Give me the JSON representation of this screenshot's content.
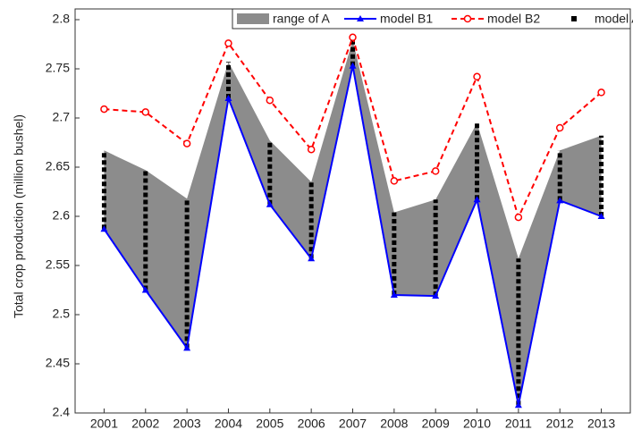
{
  "chart_data": {
    "type": "line",
    "y_label": "Total crop production (million bushel)",
    "x": [
      2001,
      2002,
      2003,
      2004,
      2005,
      2006,
      2007,
      2008,
      2009,
      2010,
      2011,
      2012,
      2013
    ],
    "xlim": [
      2000.3,
      2013.7
    ],
    "xticks": [
      2001,
      2002,
      2003,
      2004,
      2005,
      2006,
      2007,
      2008,
      2009,
      2010,
      2011,
      2012,
      2013
    ],
    "ylim": [
      2.4,
      2.8
    ],
    "yticks": [
      2.4,
      2.45,
      2.5,
      2.55,
      2.6,
      2.65,
      2.7,
      2.75,
      2.8
    ],
    "legend": "top-right",
    "series": [
      {
        "name": "range of A",
        "color": "#8c8c8c"
      },
      {
        "name": "model B1",
        "color": "#0000ff",
        "values": [
          2.587,
          2.525,
          2.466,
          2.72,
          2.612,
          2.557,
          2.753,
          2.52,
          2.519,
          2.617,
          2.408,
          2.616,
          2.6
        ]
      },
      {
        "name": "model B2",
        "color": "#ff0000",
        "values": [
          2.709,
          2.706,
          2.674,
          2.776,
          2.718,
          2.668,
          2.782,
          2.636,
          2.646,
          2.742,
          2.599,
          2.69,
          2.726
        ]
      },
      {
        "name": "model A",
        "color": "#000000",
        "low": [
          2.587,
          2.525,
          2.466,
          2.72,
          2.612,
          2.557,
          2.753,
          2.52,
          2.519,
          2.617,
          2.408,
          2.616,
          2.6
        ],
        "high": [
          2.667,
          2.647,
          2.618,
          2.757,
          2.677,
          2.635,
          2.779,
          2.604,
          2.617,
          2.695,
          2.557,
          2.667,
          2.682
        ]
      }
    ]
  }
}
